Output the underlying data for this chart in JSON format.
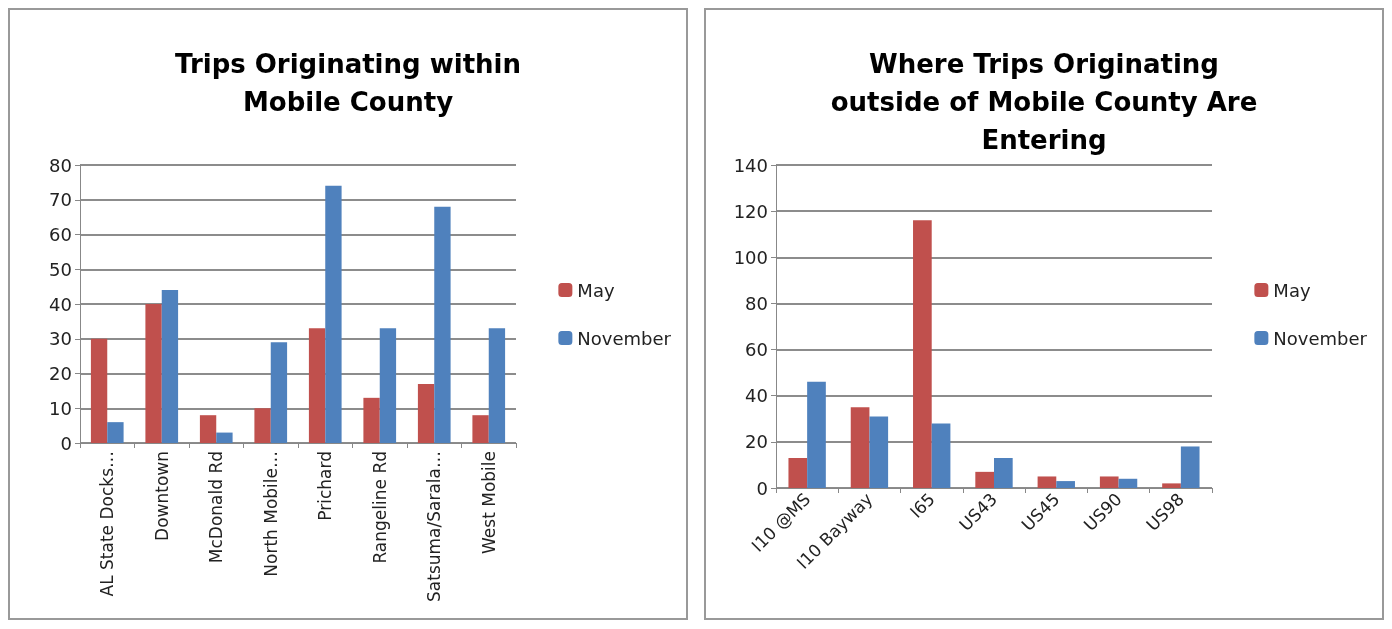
{
  "chart_data": [
    {
      "type": "bar",
      "title": "Trips Originating within Mobile County",
      "categories": [
        "AL State Docks…",
        "Downtown",
        "McDonald Rd",
        "North Mobile…",
        "Prichard",
        "Rangeline Rd",
        "Satsuma/Sarala…",
        "West Mobile"
      ],
      "series": [
        {
          "name": "May",
          "color": "#c0504d",
          "values": [
            30,
            40,
            8,
            10,
            33,
            13,
            17,
            8
          ]
        },
        {
          "name": "November",
          "color": "#4f81bd",
          "values": [
            6,
            44,
            3,
            29,
            74,
            33,
            68,
            33
          ]
        }
      ],
      "ylim": [
        0,
        80
      ],
      "yticks": [
        0,
        10,
        20,
        30,
        40,
        50,
        60,
        70,
        80
      ],
      "grid": "y",
      "legend": "right"
    },
    {
      "type": "bar",
      "title": "Where Trips Originating outside of Mobile County Are Entering",
      "categories": [
        "I10 @MS",
        "I10 Bayway",
        "I65",
        "US43",
        "US45",
        "US90",
        "US98"
      ],
      "series": [
        {
          "name": "May",
          "color": "#c0504d",
          "values": [
            13,
            35,
            116,
            7,
            5,
            5,
            2
          ]
        },
        {
          "name": "November",
          "color": "#4f81bd",
          "values": [
            46,
            31,
            28,
            13,
            3,
            4,
            18
          ]
        }
      ],
      "ylim": [
        0,
        140
      ],
      "yticks": [
        0,
        20,
        40,
        60,
        80,
        100,
        120,
        140
      ],
      "grid": "y",
      "legend": "right"
    }
  ]
}
